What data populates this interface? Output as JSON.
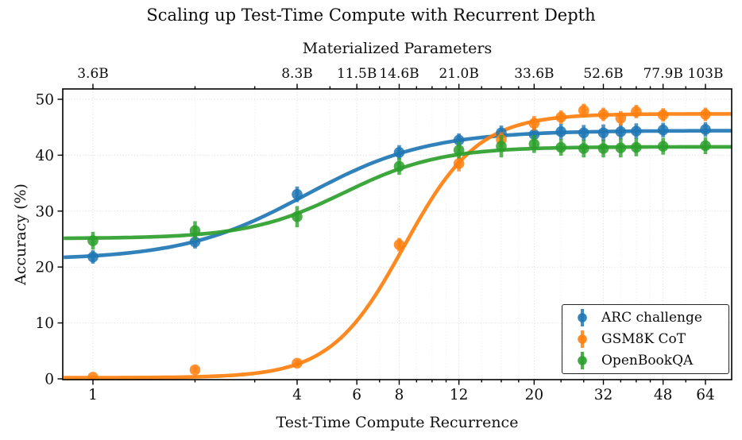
{
  "chart_data": {
    "type": "line",
    "title": "Scaling up Test-Time Compute with Recurrent Depth",
    "top_axis": {
      "label": "Materialized Parameters",
      "tick_positions": [
        1,
        4,
        6,
        8,
        12,
        20,
        32,
        48,
        64
      ],
      "tick_labels": [
        "3.6B",
        "8.3B",
        "11.5B",
        "14.6B",
        "21.0B",
        "33.6B",
        "52.6B",
        "77.9B",
        "103B"
      ]
    },
    "x_axis": {
      "label": "Test-Time Compute Recurrence",
      "scale": "log",
      "ticks": [
        1,
        4,
        6,
        8,
        12,
        20,
        32,
        48,
        64
      ],
      "minor_ticks": [
        2,
        3,
        5,
        7,
        9,
        10,
        11,
        14,
        16,
        18,
        24,
        28,
        36,
        40,
        44,
        56
      ],
      "range": [
        0.82,
        76.5
      ]
    },
    "y_axis": {
      "label": "Accuracy (%)",
      "ticks": [
        0,
        10,
        20,
        30,
        40,
        50
      ],
      "range": [
        0,
        51.9
      ],
      "grid": true
    },
    "x": [
      1,
      2,
      4,
      8,
      12,
      16,
      20,
      24,
      28,
      32,
      36,
      40,
      48,
      64
    ],
    "series": [
      {
        "name": "ARC challenge",
        "color": "#1f77b4",
        "y": [
          21.8,
          24.5,
          33.0,
          40.5,
          42.7,
          44.0,
          43.7,
          44.2,
          44.0,
          44.0,
          44.2,
          44.3,
          44.5,
          44.6
        ],
        "yerr": [
          1.2,
          1.2,
          1.4,
          1.3,
          1.2,
          1.3,
          1.3,
          1.4,
          1.4,
          1.5,
          1.4,
          1.4,
          1.3,
          1.3
        ],
        "fit": {
          "low": 21.3,
          "high": 44.4,
          "mid_log2": 2.08,
          "slope": 0.6
        }
      },
      {
        "name": "GSM8K CoT",
        "color": "#ff7f0e",
        "y": [
          0.3,
          1.6,
          2.8,
          24.0,
          38.5,
          42.8,
          45.7,
          46.8,
          48.0,
          47.3,
          46.6,
          47.8,
          47.2,
          47.3
        ],
        "yerr": [
          0.3,
          0.5,
          0.6,
          1.2,
          1.4,
          1.3,
          1.3,
          1.2,
          1.2,
          1.2,
          1.3,
          1.2,
          1.2,
          1.2
        ],
        "fit": {
          "low": 0.2,
          "high": 47.4,
          "mid_log2": 3.05,
          "slope": 0.36
        }
      },
      {
        "name": "OpenBookQA",
        "color": "#2ca02c",
        "y": [
          24.7,
          26.5,
          29.0,
          38.0,
          40.9,
          41.6,
          42.0,
          41.4,
          41.2,
          41.2,
          41.3,
          41.4,
          41.6,
          41.7
        ],
        "yerr": [
          1.6,
          1.7,
          1.9,
          1.5,
          1.5,
          2.0,
          1.6,
          1.5,
          1.6,
          1.6,
          1.7,
          1.6,
          1.5,
          1.5
        ],
        "fit": {
          "low": 25.1,
          "high": 41.5,
          "mid_log2": 2.46,
          "slope": 0.47
        }
      }
    ],
    "legend": {
      "position": "lower right"
    }
  }
}
